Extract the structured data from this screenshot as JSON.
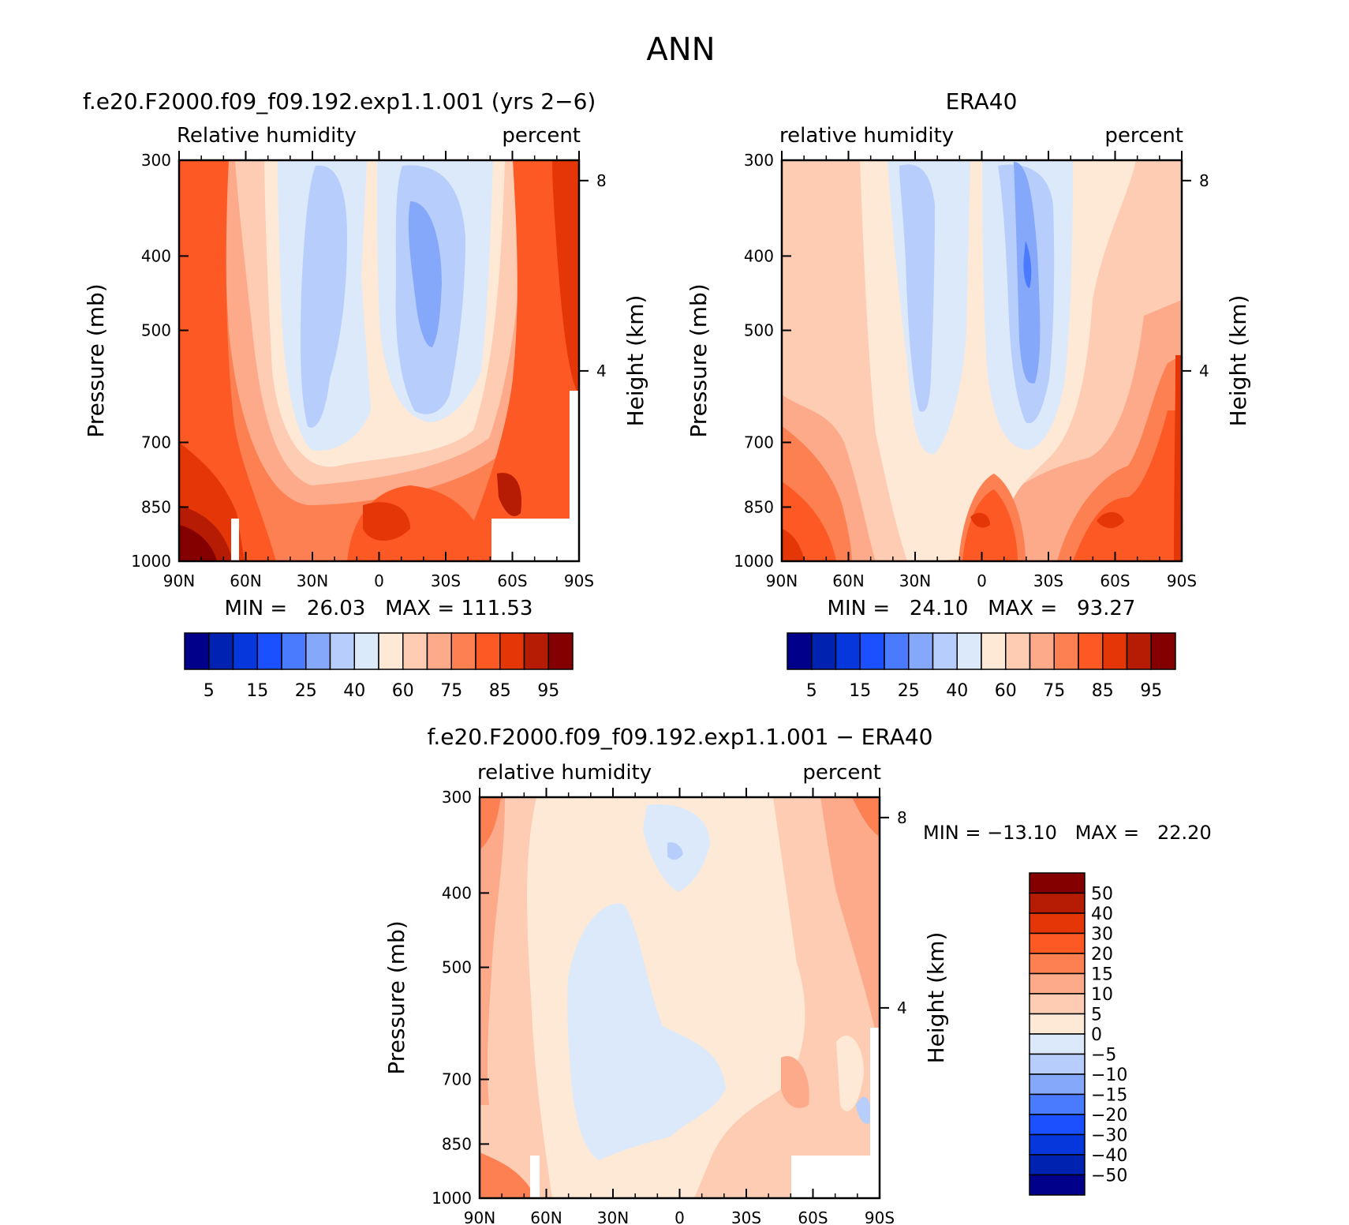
{
  "page_title": "ANN",
  "chart_data": [
    {
      "type": "heatmap",
      "title": "f.e20.F2000.f09_f09.192.exp1.1.001 (yrs 2−6)",
      "variable": "Relative humidity",
      "units": "percent",
      "xlabel": "",
      "ylabel": "Pressure (mb)",
      "y2label": "Height (km)",
      "x_ticks": [
        "90N",
        "60N",
        "30N",
        "0",
        "30S",
        "60S",
        "90S"
      ],
      "y_ticks": [
        300,
        400,
        500,
        700,
        850,
        1000
      ],
      "y2_ticks": [
        8,
        4
      ],
      "xlim": [
        90,
        -90
      ],
      "ylim": [
        1000,
        300
      ],
      "stats": "MIN =   26.03   MAX = 111.53",
      "min": 26.03,
      "max": 111.53,
      "colorbar_labels": [
        "5",
        "15",
        "25",
        "40",
        "60",
        "75",
        "85",
        "95"
      ]
    },
    {
      "type": "heatmap",
      "title": "ERA40",
      "variable": "relative humidity",
      "units": "percent",
      "xlabel": "",
      "ylabel": "Pressure (mb)",
      "y2label": "Height (km)",
      "x_ticks": [
        "90N",
        "60N",
        "30N",
        "0",
        "30S",
        "60S",
        "90S"
      ],
      "y_ticks": [
        300,
        400,
        500,
        700,
        850,
        1000
      ],
      "y2_ticks": [
        8,
        4
      ],
      "xlim": [
        90,
        -90
      ],
      "ylim": [
        1000,
        300
      ],
      "stats": "MIN =   24.10   MAX =   93.27",
      "min": 24.1,
      "max": 93.27,
      "colorbar_labels": [
        "5",
        "15",
        "25",
        "40",
        "60",
        "75",
        "85",
        "95"
      ]
    },
    {
      "type": "heatmap",
      "title": "f.e20.F2000.f09_f09.192.exp1.1.001 − ERA40",
      "variable": "relative humidity",
      "units": "percent",
      "xlabel": "",
      "ylabel": "Pressure (mb)",
      "y2label": "Height (km)",
      "x_ticks": [
        "90N",
        "60N",
        "30N",
        "0",
        "30S",
        "60S",
        "90S"
      ],
      "y_ticks": [
        300,
        400,
        500,
        700,
        850,
        1000
      ],
      "y2_ticks": [
        8,
        4
      ],
      "xlim": [
        90,
        -90
      ],
      "ylim": [
        1000,
        300
      ],
      "stats": "MIN = −13.10   MAX =   22.20",
      "min": -13.1,
      "max": 22.2,
      "colorbar_labels": [
        "50",
        "40",
        "30",
        "20",
        "15",
        "10",
        "5",
        "0",
        "−5",
        "−10",
        "−15",
        "−20",
        "−30",
        "−40",
        "−50"
      ]
    }
  ],
  "palettes": {
    "abs": [
      "#00008a",
      "#0022b0",
      "#0637dc",
      "#1a50ff",
      "#4a7bff",
      "#86a8fb",
      "#b7cdfb",
      "#dbe9fb",
      "#fde9d6",
      "#fdccb3",
      "#fcaa8a",
      "#fd8052",
      "#fd5924",
      "#e43606",
      "#b61c03",
      "#840000"
    ],
    "diff": [
      "#840000",
      "#b61c03",
      "#e43606",
      "#fd5924",
      "#fd8052",
      "#fcaa8a",
      "#fdccb3",
      "#fde9d6",
      "#dbe9fb",
      "#b7cdfb",
      "#86a8fb",
      "#4a7bff",
      "#1a50ff",
      "#0637dc",
      "#0022b0",
      "#00008a"
    ]
  }
}
